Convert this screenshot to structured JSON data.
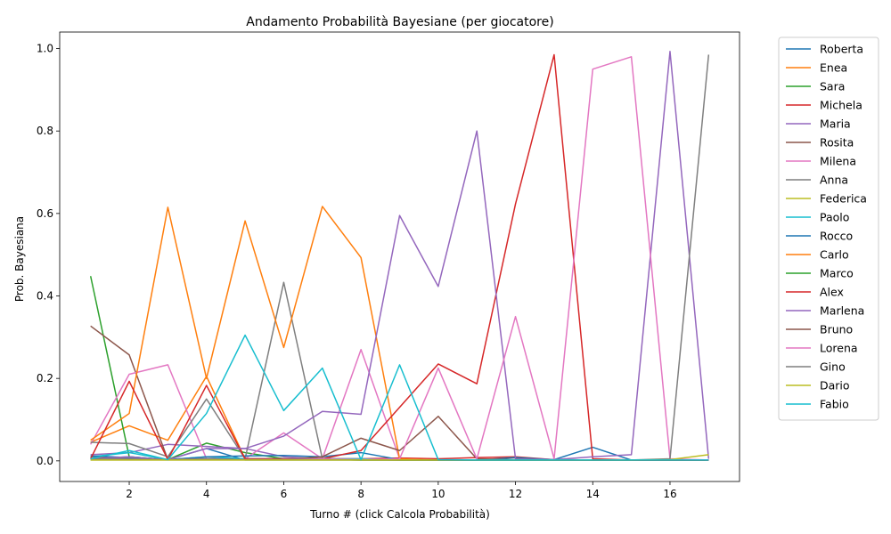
{
  "chart_data": {
    "type": "line",
    "title": "Andamento Probabilità Bayesiane (per giocatore)",
    "xlabel": "Turno # (click Calcola Probabilità)",
    "ylabel": "Prob. Bayesiana",
    "xlim": [
      0.2,
      17.8
    ],
    "ylim": [
      -0.05,
      1.04
    ],
    "xticks": [
      2,
      4,
      6,
      8,
      10,
      12,
      14,
      16
    ],
    "yticks": [
      0.0,
      0.2,
      0.4,
      0.6,
      0.8,
      1.0
    ],
    "xtick_labels": [
      "2",
      "4",
      "6",
      "8",
      "10",
      "12",
      "14",
      "16"
    ],
    "ytick_labels": [
      "0.0",
      "0.2",
      "0.4",
      "0.6",
      "0.8",
      "1.0"
    ],
    "grid": false,
    "legend_position": "outside-right",
    "x": [
      1,
      2,
      3,
      4,
      5,
      6,
      7,
      8,
      9,
      10,
      11,
      12,
      13,
      14,
      15,
      16,
      17
    ],
    "series": [
      {
        "name": "Roberta",
        "color": "#1f77b4",
        "values": [
          0.005,
          0.01,
          0.003,
          0.03,
          0.002,
          0.002,
          0.002,
          0.002,
          0.002,
          0.002,
          0.002,
          0.002,
          0.003,
          0.033,
          0.002,
          0.002,
          0.002
        ]
      },
      {
        "name": "Enea",
        "color": "#ff7f0e",
        "values": [
          0.045,
          0.085,
          0.05,
          0.205,
          0.005,
          0.005,
          0.005,
          0.005,
          0.002,
          0.002,
          0.002,
          0.002,
          0.002,
          0.002,
          0.002,
          0.002,
          0.002
        ]
      },
      {
        "name": "Sara",
        "color": "#2ca02c",
        "values": [
          0.448,
          0.01,
          0.003,
          0.043,
          0.02,
          0.005,
          0.003,
          0.002,
          0.002,
          0.002,
          0.002,
          0.002,
          0.002,
          0.002,
          0.002,
          0.002,
          0.002
        ]
      },
      {
        "name": "Michela",
        "color": "#d62728",
        "values": [
          0.01,
          0.005,
          0.003,
          0.005,
          0.003,
          0.003,
          0.005,
          0.005,
          0.007,
          0.005,
          0.008,
          0.01,
          0.003,
          0.002,
          0.002,
          0.002,
          0.002
        ]
      },
      {
        "name": "Maria",
        "color": "#9467bd",
        "values": [
          0.015,
          0.02,
          0.04,
          0.035,
          0.03,
          0.01,
          0.005,
          0.003,
          0.002,
          0.002,
          0.002,
          0.002,
          0.002,
          0.002,
          0.002,
          0.002,
          0.002
        ]
      },
      {
        "name": "Rosita",
        "color": "#8c564b",
        "values": [
          0.327,
          0.257,
          0.003,
          0.005,
          0.005,
          0.003,
          0.005,
          0.003,
          0.002,
          0.002,
          0.002,
          0.002,
          0.002,
          0.002,
          0.002,
          0.002,
          0.002
        ]
      },
      {
        "name": "Milena",
        "color": "#e377c2",
        "values": [
          0.04,
          0.21,
          0.233,
          0.005,
          0.005,
          0.068,
          0.005,
          0.27,
          0.005,
          0.002,
          0.002,
          0.002,
          0.002,
          0.002,
          0.002,
          0.002,
          0.002
        ]
      },
      {
        "name": "Anna",
        "color": "#7f7f7f",
        "values": [
          0.045,
          0.042,
          0.01,
          0.15,
          0.005,
          0.433,
          0.005,
          0.003,
          0.002,
          0.002,
          0.002,
          0.002,
          0.002,
          0.002,
          0.002,
          0.002,
          0.002
        ]
      },
      {
        "name": "Federica",
        "color": "#bcbd22",
        "values": [
          0.002,
          0.002,
          0.002,
          0.002,
          0.002,
          0.002,
          0.002,
          0.002,
          0.002,
          0.002,
          0.002,
          0.002,
          0.002,
          0.002,
          0.002,
          0.002,
          0.002
        ]
      },
      {
        "name": "Paolo",
        "color": "#17becf",
        "values": [
          0.01,
          0.02,
          0.003,
          0.01,
          0.005,
          0.005,
          0.005,
          0.005,
          0.002,
          0.002,
          0.002,
          0.002,
          0.002,
          0.002,
          0.002,
          0.002,
          0.002
        ]
      },
      {
        "name": "Rocco",
        "color": "#1f77b4",
        "values": [
          0.012,
          0.008,
          0.003,
          0.01,
          0.012,
          0.013,
          0.01,
          0.02,
          0.003,
          0.002,
          0.002,
          0.008,
          0.003,
          0.002,
          0.002,
          0.002,
          0.002
        ]
      },
      {
        "name": "Carlo",
        "color": "#ff7f0e",
        "values": [
          0.05,
          0.115,
          0.615,
          0.2,
          0.582,
          0.275,
          0.617,
          0.493,
          0.005,
          0.002,
          0.002,
          0.002,
          0.002,
          0.002,
          0.002,
          0.002,
          0.002
        ]
      },
      {
        "name": "Marco",
        "color": "#2ca02c",
        "values": [
          0.005,
          0.005,
          0.003,
          0.005,
          0.003,
          0.003,
          0.003,
          0.002,
          0.002,
          0.002,
          0.002,
          0.002,
          0.002,
          0.002,
          0.002,
          0.002,
          0.002
        ]
      },
      {
        "name": "Alex",
        "color": "#d62728",
        "values": [
          0.005,
          0.193,
          0.003,
          0.183,
          0.005,
          0.005,
          0.005,
          0.025,
          0.13,
          0.235,
          0.187,
          0.623,
          0.985,
          0.005,
          0.002,
          0.002,
          0.002
        ]
      },
      {
        "name": "Marlena",
        "color": "#9467bd",
        "values": [
          0.005,
          0.01,
          0.003,
          0.03,
          0.03,
          0.06,
          0.12,
          0.113,
          0.595,
          0.423,
          0.8,
          0.005,
          0.003,
          0.01,
          0.015,
          0.993,
          0.005
        ]
      },
      {
        "name": "Bruno",
        "color": "#8c564b",
        "values": [
          0.005,
          0.005,
          0.003,
          0.005,
          0.003,
          0.003,
          0.01,
          0.055,
          0.025,
          0.108,
          0.005,
          0.003,
          0.002,
          0.002,
          0.002,
          0.002,
          0.002
        ]
      },
      {
        "name": "Lorena",
        "color": "#e377c2",
        "values": [
          0.005,
          0.005,
          0.003,
          0.005,
          0.003,
          0.003,
          0.005,
          0.003,
          0.005,
          0.225,
          0.005,
          0.35,
          0.005,
          0.95,
          0.98,
          0.005,
          0.002
        ]
      },
      {
        "name": "Gino",
        "color": "#7f7f7f",
        "values": [
          0.005,
          0.005,
          0.003,
          0.005,
          0.003,
          0.003,
          0.003,
          0.002,
          0.002,
          0.002,
          0.002,
          0.002,
          0.002,
          0.002,
          0.002,
          0.005,
          0.985
        ]
      },
      {
        "name": "Dario",
        "color": "#bcbd22",
        "values": [
          0.002,
          0.002,
          0.002,
          0.002,
          0.002,
          0.002,
          0.002,
          0.002,
          0.002,
          0.002,
          0.002,
          0.002,
          0.002,
          0.002,
          0.002,
          0.003,
          0.015
        ]
      },
      {
        "name": "Fabio",
        "color": "#17becf",
        "values": [
          0.005,
          0.025,
          0.003,
          0.115,
          0.305,
          0.122,
          0.225,
          0.003,
          0.233,
          0.003,
          0.002,
          0.002,
          0.002,
          0.002,
          0.002,
          0.002,
          0.002
        ]
      }
    ]
  }
}
